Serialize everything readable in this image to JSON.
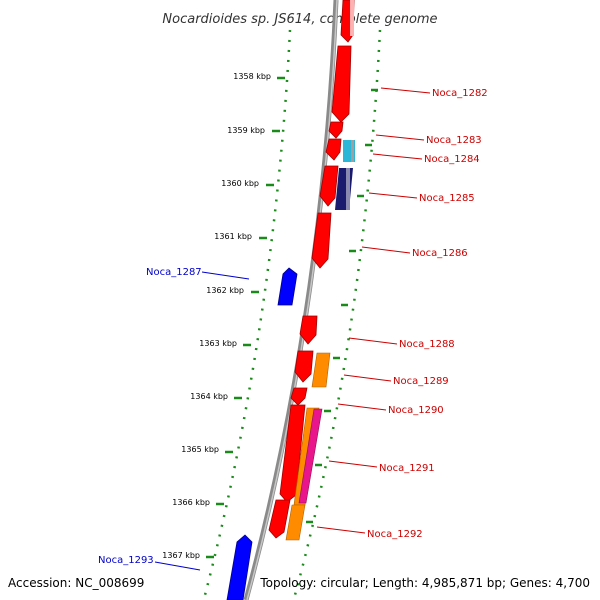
{
  "title": "Nocardioides sp. JS614, complete genome",
  "footer": {
    "accession": "Accession: NC_008699",
    "summary": "Topology: circular; Length: 4,985,871 bp; Genes: 4,700"
  },
  "colors": {
    "backbone": "#8a8a8a",
    "tick": "#1a8a1a",
    "forward_label": "#cc0000",
    "reverse_label": "#0000cc",
    "gene_red": "#ff0000",
    "gene_orange": "#ff8c00",
    "gene_cyan": "#2ab6d6",
    "gene_navy": "#1a1a6e",
    "gene_magenta": "#e8168a",
    "gene_blue": "#0000ff"
  },
  "kbp_labels": [
    "1358 kbp",
    "1359 kbp",
    "1360 kbp",
    "1361 kbp",
    "1362 kbp",
    "1363 kbp",
    "1364 kbp",
    "1365 kbp",
    "1366 kbp",
    "1367 kbp"
  ],
  "gene_labels": [
    {
      "name": "Noca_1282",
      "strand": "forward"
    },
    {
      "name": "Noca_1283",
      "strand": "forward"
    },
    {
      "name": "Noca_1284",
      "strand": "forward"
    },
    {
      "name": "Noca_1285",
      "strand": "forward"
    },
    {
      "name": "Noca_1286",
      "strand": "forward"
    },
    {
      "name": "Noca_1287",
      "strand": "reverse"
    },
    {
      "name": "Noca_1288",
      "strand": "forward"
    },
    {
      "name": "Noca_1289",
      "strand": "forward"
    },
    {
      "name": "Noca_1290",
      "strand": "forward"
    },
    {
      "name": "Noca_1291",
      "strand": "forward"
    },
    {
      "name": "Noca_1292",
      "strand": "forward"
    },
    {
      "name": "Noca_1293",
      "strand": "reverse"
    }
  ]
}
